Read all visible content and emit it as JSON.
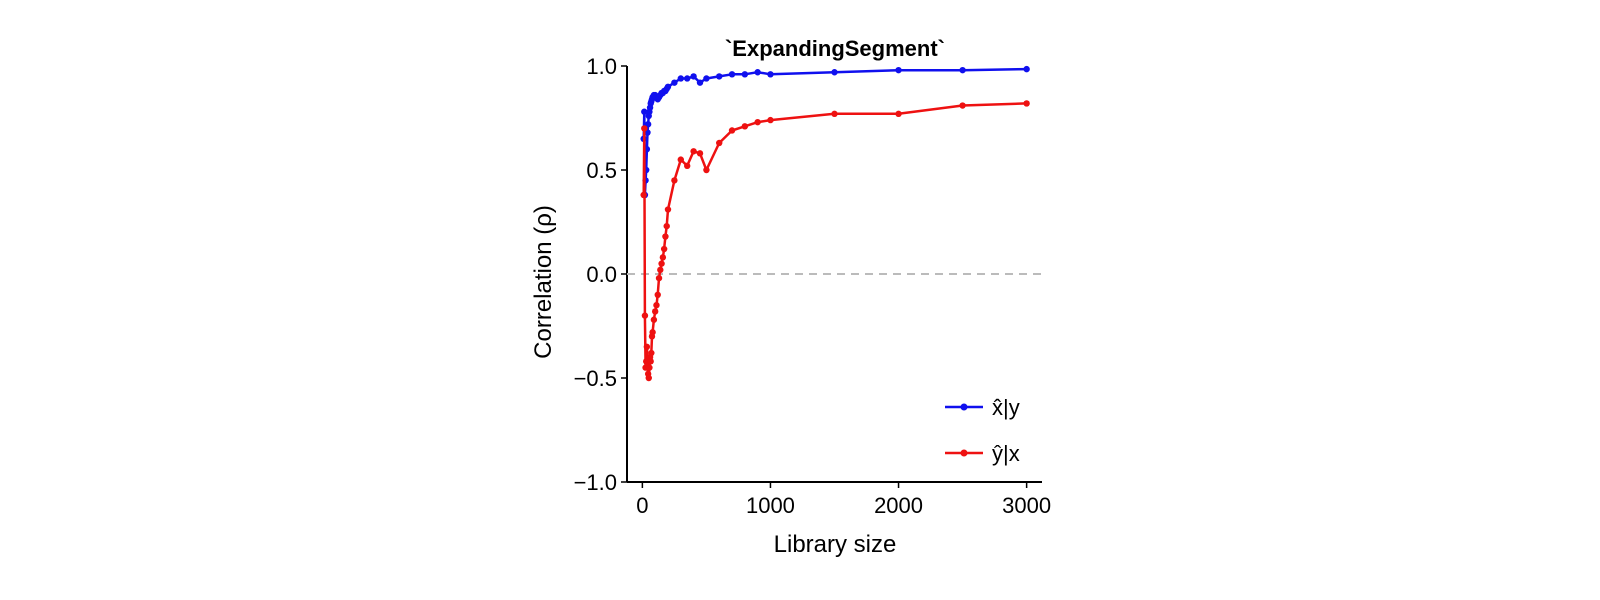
{
  "chart_data": {
    "type": "line",
    "title": "`ExpandingSegment`",
    "xlabel": "Library size",
    "ylabel": "Correlation (ρ)",
    "xlim": [
      -120,
      3120
    ],
    "ylim": [
      -1.0,
      1.0
    ],
    "xticks": [
      0,
      1000,
      2000,
      3000
    ],
    "xtick_labels": [
      "0",
      "1000",
      "2000",
      "3000"
    ],
    "yticks": [
      -1.0,
      -0.5,
      0.0,
      0.5,
      1.0
    ],
    "ytick_labels": [
      "−1.0",
      "−0.5",
      "0.0",
      "0.5",
      "1.0"
    ],
    "reference_line": {
      "y": 0.0,
      "style": "dashed",
      "color": "#bbbbbb"
    },
    "legend_position": "lower-right",
    "grid": false,
    "series": [
      {
        "name": "x̂|y",
        "color": "#1010ee",
        "x": [
          10,
          15,
          20,
          25,
          30,
          35,
          40,
          45,
          50,
          55,
          60,
          65,
          70,
          75,
          80,
          90,
          100,
          110,
          120,
          130,
          140,
          150,
          160,
          170,
          180,
          190,
          200,
          250,
          300,
          350,
          400,
          450,
          500,
          600,
          700,
          800,
          900,
          1000,
          1500,
          2000,
          2500,
          3000
        ],
        "y": [
          0.65,
          0.78,
          0.38,
          0.45,
          0.5,
          0.6,
          0.68,
          0.72,
          0.76,
          0.78,
          0.8,
          0.82,
          0.83,
          0.84,
          0.85,
          0.86,
          0.86,
          0.85,
          0.84,
          0.85,
          0.86,
          0.87,
          0.87,
          0.88,
          0.88,
          0.89,
          0.9,
          0.92,
          0.94,
          0.94,
          0.95,
          0.92,
          0.94,
          0.95,
          0.96,
          0.96,
          0.97,
          0.96,
          0.97,
          0.98,
          0.98,
          0.985
        ]
      },
      {
        "name": "ŷ|x",
        "color": "#ee1111",
        "x": [
          10,
          15,
          20,
          25,
          30,
          35,
          40,
          45,
          50,
          55,
          60,
          65,
          70,
          75,
          80,
          90,
          100,
          110,
          120,
          130,
          140,
          150,
          160,
          170,
          180,
          190,
          200,
          250,
          300,
          350,
          400,
          450,
          500,
          600,
          700,
          800,
          900,
          1000,
          1500,
          2000,
          2500,
          3000
        ],
        "y": [
          0.38,
          0.7,
          -0.2,
          -0.45,
          -0.42,
          -0.35,
          -0.44,
          -0.48,
          -0.5,
          -0.45,
          -0.4,
          -0.42,
          -0.38,
          -0.3,
          -0.28,
          -0.22,
          -0.18,
          -0.15,
          -0.1,
          -0.02,
          0.02,
          0.05,
          0.08,
          0.12,
          0.18,
          0.23,
          0.31,
          0.45,
          0.55,
          0.52,
          0.59,
          0.58,
          0.5,
          0.63,
          0.69,
          0.71,
          0.73,
          0.74,
          0.77,
          0.77,
          0.81,
          0.82
        ]
      }
    ]
  }
}
